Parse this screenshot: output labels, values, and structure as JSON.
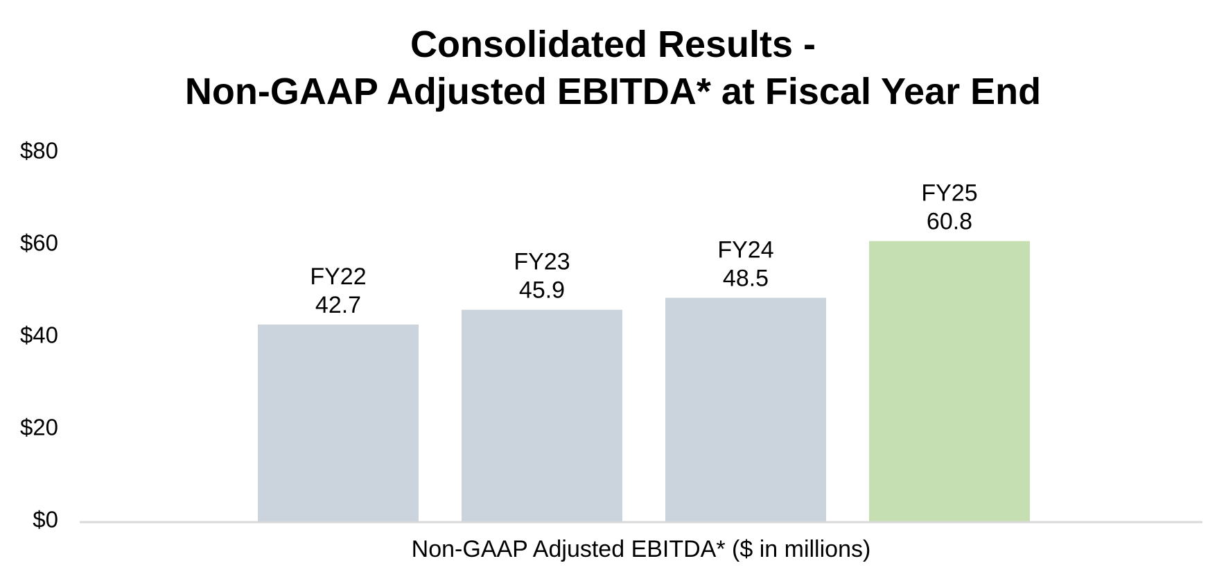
{
  "chart_data": {
    "type": "bar",
    "title_lines": [
      "Consolidated Results -",
      "Non-GAAP Adjusted EBITDA* at Fiscal Year End"
    ],
    "xlabel": "Non-GAAP Adjusted EBITDA* ($ in millions)",
    "ylabel": "",
    "ylim": [
      0,
      80
    ],
    "yticks": [
      0,
      20,
      40,
      60,
      80
    ],
    "ytick_labels": [
      "$0",
      "$20",
      "$40",
      "$60",
      "$80"
    ],
    "categories": [
      "FY22",
      "FY23",
      "FY24",
      "FY25"
    ],
    "values": [
      42.7,
      45.9,
      48.5,
      60.8
    ],
    "value_labels": [
      "42.7",
      "45.9",
      "48.5",
      "60.8"
    ],
    "bar_colors": [
      "#cbd3dc",
      "#cbd3dc",
      "#cbd3dc",
      "#c5dfb2"
    ],
    "axis_color": "#d9d9d9",
    "grid": false,
    "legend": "none"
  }
}
